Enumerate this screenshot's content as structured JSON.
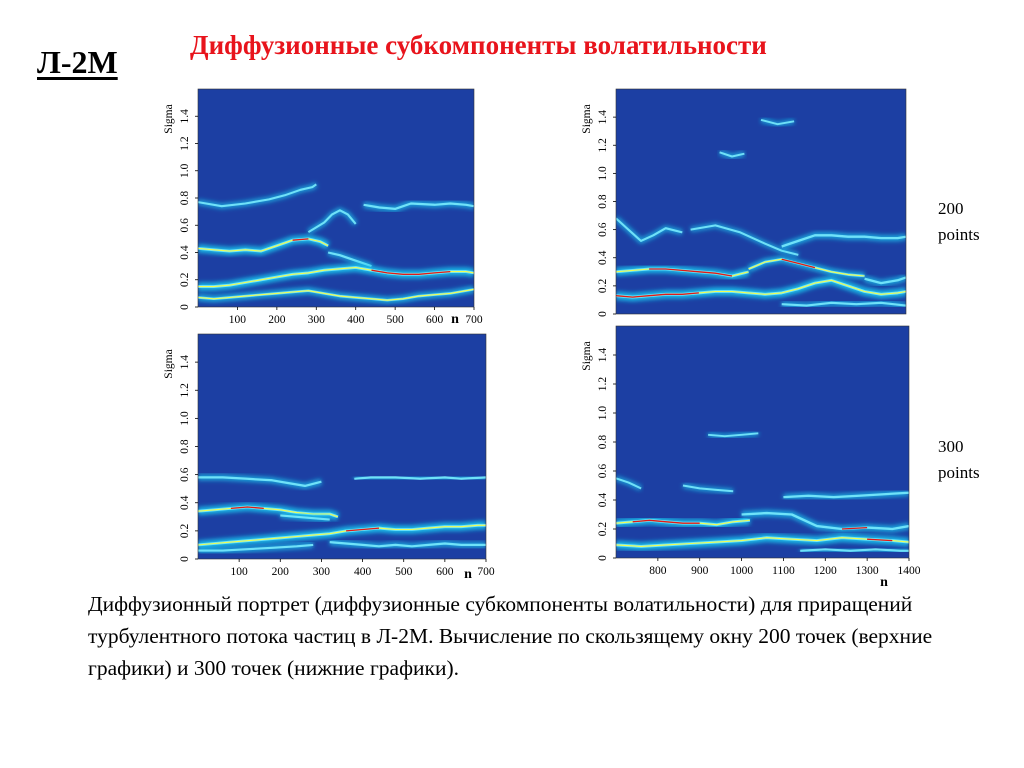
{
  "slide": {
    "label": "Л-2М",
    "title": "Диффузионные субкомпоненты волатильности",
    "notes": [
      "200\npoints",
      "300\npoints"
    ],
    "caption": "Диффузионный портрет (диффузионные субкомпоненты волатильности) для приращений турбулентного потока частиц в Л-2М. Вычисление по скользящему окну 200 точек (верхние графики) и 300 точек (нижние графики)."
  },
  "colors": {
    "background": "#1c3fa3",
    "ridge_glow": "#18c8f0",
    "ridge_core": "#ffff40",
    "ridge_peak": "#e01818",
    "title": "#e8141c"
  },
  "chart_data": [
    {
      "type": "heatmap",
      "ylabel": "Sigma",
      "xlabel": "n",
      "xlim": [
        0,
        700
      ],
      "ylim": [
        0,
        1.6
      ],
      "xticks": [
        100,
        200,
        300,
        400,
        500,
        600,
        700
      ],
      "yticks": [
        0,
        0.2,
        0.4,
        0.6,
        0.8,
        1.0,
        1.2,
        1.4
      ],
      "series": [
        {
          "x": [
            0,
            60,
            120,
            180,
            220,
            260,
            290,
            300
          ],
          "values": [
            0.77,
            0.74,
            0.76,
            0.79,
            0.82,
            0.86,
            0.88,
            0.9
          ],
          "intensity": 0.35
        },
        {
          "x": [
            280,
            320,
            340,
            360,
            380,
            400
          ],
          "values": [
            0.55,
            0.62,
            0.68,
            0.71,
            0.68,
            0.61
          ],
          "intensity": 0.35
        },
        {
          "x": [
            420,
            460,
            500,
            540,
            600,
            640,
            680,
            700
          ],
          "values": [
            0.75,
            0.73,
            0.72,
            0.76,
            0.75,
            0.76,
            0.75,
            0.74
          ],
          "intensity": 0.45
        },
        {
          "x": [
            0,
            40,
            80,
            120,
            160,
            200,
            240,
            280,
            310,
            330
          ],
          "values": [
            0.43,
            0.42,
            0.41,
            0.42,
            0.41,
            0.45,
            0.49,
            0.5,
            0.48,
            0.45
          ],
          "intensity": 0.85,
          "peak": [
            240,
            300
          ]
        },
        {
          "x": [
            330,
            360,
            400,
            440
          ],
          "values": [
            0.4,
            0.38,
            0.34,
            0.3
          ],
          "intensity": 0.4
        },
        {
          "x": [
            0,
            40,
            80,
            120,
            160,
            200,
            240,
            280,
            320,
            360,
            400,
            440,
            480,
            520,
            560,
            600,
            640,
            680,
            700
          ],
          "values": [
            0.15,
            0.15,
            0.16,
            0.18,
            0.2,
            0.22,
            0.24,
            0.25,
            0.27,
            0.28,
            0.29,
            0.27,
            0.25,
            0.24,
            0.24,
            0.25,
            0.26,
            0.26,
            0.25
          ],
          "intensity": 0.9,
          "peak": [
            430,
            660
          ]
        },
        {
          "x": [
            0,
            40,
            80,
            120,
            160,
            200,
            240,
            280,
            320,
            360,
            400,
            440,
            480,
            520,
            560,
            600,
            640,
            680,
            700
          ],
          "values": [
            0.07,
            0.06,
            0.07,
            0.08,
            0.09,
            0.1,
            0.11,
            0.12,
            0.1,
            0.08,
            0.07,
            0.06,
            0.05,
            0.06,
            0.08,
            0.09,
            0.1,
            0.12,
            0.13
          ],
          "intensity": 0.6
        }
      ]
    },
    {
      "type": "heatmap",
      "ylabel": "Sigma",
      "xlabel": "",
      "xlim": [
        700,
        1400
      ],
      "ylim": [
        0,
        1.6
      ],
      "xticks": [],
      "yticks": [
        0,
        0.2,
        0.4,
        0.6,
        0.8,
        1.0,
        1.2,
        1.4
      ],
      "series": [
        {
          "x": [
            950,
            980,
            1010
          ],
          "values": [
            1.15,
            1.12,
            1.14
          ],
          "intensity": 0.3
        },
        {
          "x": [
            1050,
            1090,
            1130
          ],
          "values": [
            1.38,
            1.35,
            1.37
          ],
          "intensity": 0.25
        },
        {
          "x": [
            700,
            730,
            760,
            790,
            820,
            860
          ],
          "values": [
            0.68,
            0.6,
            0.52,
            0.56,
            0.61,
            0.58
          ],
          "intensity": 0.35
        },
        {
          "x": [
            880,
            940,
            1000,
            1060,
            1100,
            1140
          ],
          "values": [
            0.6,
            0.63,
            0.58,
            0.5,
            0.45,
            0.42
          ],
          "intensity": 0.3
        },
        {
          "x": [
            1100,
            1140,
            1180,
            1220,
            1260,
            1300,
            1340,
            1380,
            1400
          ],
          "values": [
            0.48,
            0.52,
            0.56,
            0.56,
            0.55,
            0.55,
            0.54,
            0.54,
            0.55
          ],
          "intensity": 0.5
        },
        {
          "x": [
            700,
            740,
            780,
            820,
            860,
            900,
            940,
            980,
            1020
          ],
          "values": [
            0.3,
            0.31,
            0.32,
            0.32,
            0.31,
            0.3,
            0.29,
            0.27,
            0.3
          ],
          "intensity": 0.85,
          "peak": [
            760,
            1000
          ]
        },
        {
          "x": [
            1020,
            1060,
            1100,
            1140,
            1180,
            1220,
            1260,
            1300
          ],
          "values": [
            0.32,
            0.37,
            0.39,
            0.36,
            0.33,
            0.3,
            0.28,
            0.27
          ],
          "intensity": 0.6,
          "peak": [
            1080,
            1180
          ]
        },
        {
          "x": [
            1300,
            1340,
            1380,
            1400
          ],
          "values": [
            0.25,
            0.22,
            0.24,
            0.26
          ],
          "intensity": 0.5
        },
        {
          "x": [
            700,
            740,
            780,
            820,
            860,
            900,
            940,
            980,
            1020,
            1060,
            1100,
            1140,
            1180,
            1220,
            1260,
            1300,
            1340,
            1380,
            1400
          ],
          "values": [
            0.13,
            0.12,
            0.13,
            0.14,
            0.14,
            0.15,
            0.16,
            0.16,
            0.15,
            0.14,
            0.15,
            0.18,
            0.22,
            0.24,
            0.2,
            0.16,
            0.14,
            0.15,
            0.16
          ],
          "intensity": 0.9,
          "peak": [
            700,
            900
          ]
        },
        {
          "x": [
            1100,
            1160,
            1220,
            1280,
            1340,
            1400
          ],
          "values": [
            0.07,
            0.06,
            0.08,
            0.07,
            0.08,
            0.06
          ],
          "intensity": 0.4
        }
      ]
    },
    {
      "type": "heatmap",
      "ylabel": "Sigma",
      "xlabel": "n",
      "xlim": [
        0,
        700
      ],
      "ylim": [
        0,
        1.6
      ],
      "xticks": [
        100,
        200,
        300,
        400,
        500,
        600,
        700
      ],
      "yticks": [
        0,
        0.2,
        0.4,
        0.6,
        0.8,
        1.0,
        1.2,
        1.4
      ],
      "series": [
        {
          "x": [
            0,
            60,
            120,
            180,
            220,
            260,
            300
          ],
          "values": [
            0.58,
            0.58,
            0.57,
            0.56,
            0.54,
            0.52,
            0.55
          ],
          "intensity": 0.45
        },
        {
          "x": [
            380,
            420,
            480,
            540,
            600,
            640,
            700
          ],
          "values": [
            0.57,
            0.58,
            0.58,
            0.57,
            0.58,
            0.57,
            0.58
          ],
          "intensity": 0.45
        },
        {
          "x": [
            0,
            40,
            80,
            120,
            160,
            200,
            240,
            280,
            320,
            340
          ],
          "values": [
            0.34,
            0.35,
            0.36,
            0.37,
            0.36,
            0.35,
            0.33,
            0.32,
            0.32,
            0.3
          ],
          "intensity": 0.85,
          "peak": [
            60,
            180
          ]
        },
        {
          "x": [
            200,
            240,
            280,
            320
          ],
          "values": [
            0.31,
            0.3,
            0.29,
            0.28
          ],
          "intensity": 0.35
        },
        {
          "x": [
            0,
            40,
            80,
            120,
            160,
            200,
            240,
            280,
            320,
            360,
            400,
            440,
            480,
            520,
            560,
            600,
            640,
            680,
            700
          ],
          "values": [
            0.1,
            0.11,
            0.12,
            0.13,
            0.14,
            0.15,
            0.16,
            0.17,
            0.18,
            0.2,
            0.21,
            0.22,
            0.21,
            0.21,
            0.22,
            0.23,
            0.23,
            0.24,
            0.24
          ],
          "intensity": 0.9,
          "peak": [
            340,
            440
          ]
        },
        {
          "x": [
            320,
            360,
            400,
            440,
            480,
            520,
            560,
            600,
            640,
            700
          ],
          "values": [
            0.12,
            0.11,
            0.1,
            0.09,
            0.1,
            0.09,
            0.1,
            0.11,
            0.1,
            0.1
          ],
          "intensity": 0.45
        },
        {
          "x": [
            0,
            60,
            120,
            180,
            240,
            280
          ],
          "values": [
            0.06,
            0.06,
            0.07,
            0.08,
            0.09,
            0.1
          ],
          "intensity": 0.4
        }
      ]
    },
    {
      "type": "heatmap",
      "ylabel": "Sigma",
      "xlabel": "n",
      "xlim": [
        700,
        1400
      ],
      "ylim": [
        0,
        1.6
      ],
      "xticks": [
        800,
        900,
        1000,
        1100,
        1200,
        1300,
        1400
      ],
      "yticks": [
        0,
        0.2,
        0.4,
        0.6,
        0.8,
        1.0,
        1.2,
        1.4
      ],
      "series": [
        {
          "x": [
            920,
            960,
            1000,
            1040
          ],
          "values": [
            0.85,
            0.84,
            0.85,
            0.86
          ],
          "intensity": 0.25
        },
        {
          "x": [
            700,
            730,
            760
          ],
          "values": [
            0.55,
            0.52,
            0.48
          ],
          "intensity": 0.3
        },
        {
          "x": [
            860,
            900,
            940,
            980
          ],
          "values": [
            0.5,
            0.48,
            0.47,
            0.46
          ],
          "intensity": 0.3
        },
        {
          "x": [
            1100,
            1160,
            1220,
            1280,
            1340,
            1400
          ],
          "values": [
            0.42,
            0.43,
            0.42,
            0.43,
            0.44,
            0.45
          ],
          "intensity": 0.45
        },
        {
          "x": [
            700,
            740,
            780,
            820,
            860,
            900,
            940,
            980,
            1020
          ],
          "values": [
            0.24,
            0.25,
            0.26,
            0.25,
            0.24,
            0.24,
            0.23,
            0.25,
            0.26
          ],
          "intensity": 0.85,
          "peak": [
            720,
            920
          ]
        },
        {
          "x": [
            1000,
            1060,
            1120,
            1180,
            1240,
            1300,
            1360,
            1400
          ],
          "values": [
            0.3,
            0.31,
            0.3,
            0.22,
            0.2,
            0.21,
            0.2,
            0.22
          ],
          "intensity": 0.55,
          "peak": [
            1200,
            1300
          ]
        },
        {
          "x": [
            700,
            760,
            820,
            880,
            940,
            1000,
            1060,
            1120,
            1180,
            1240,
            1300,
            1360,
            1400
          ],
          "values": [
            0.09,
            0.08,
            0.09,
            0.1,
            0.11,
            0.12,
            0.14,
            0.13,
            0.12,
            0.14,
            0.13,
            0.12,
            0.11
          ],
          "intensity": 0.9,
          "peak": [
            1260,
            1360
          ]
        },
        {
          "x": [
            1140,
            1200,
            1260,
            1320,
            1380,
            1400
          ],
          "values": [
            0.05,
            0.06,
            0.05,
            0.06,
            0.05,
            0.05
          ],
          "intensity": 0.35
        }
      ]
    }
  ]
}
